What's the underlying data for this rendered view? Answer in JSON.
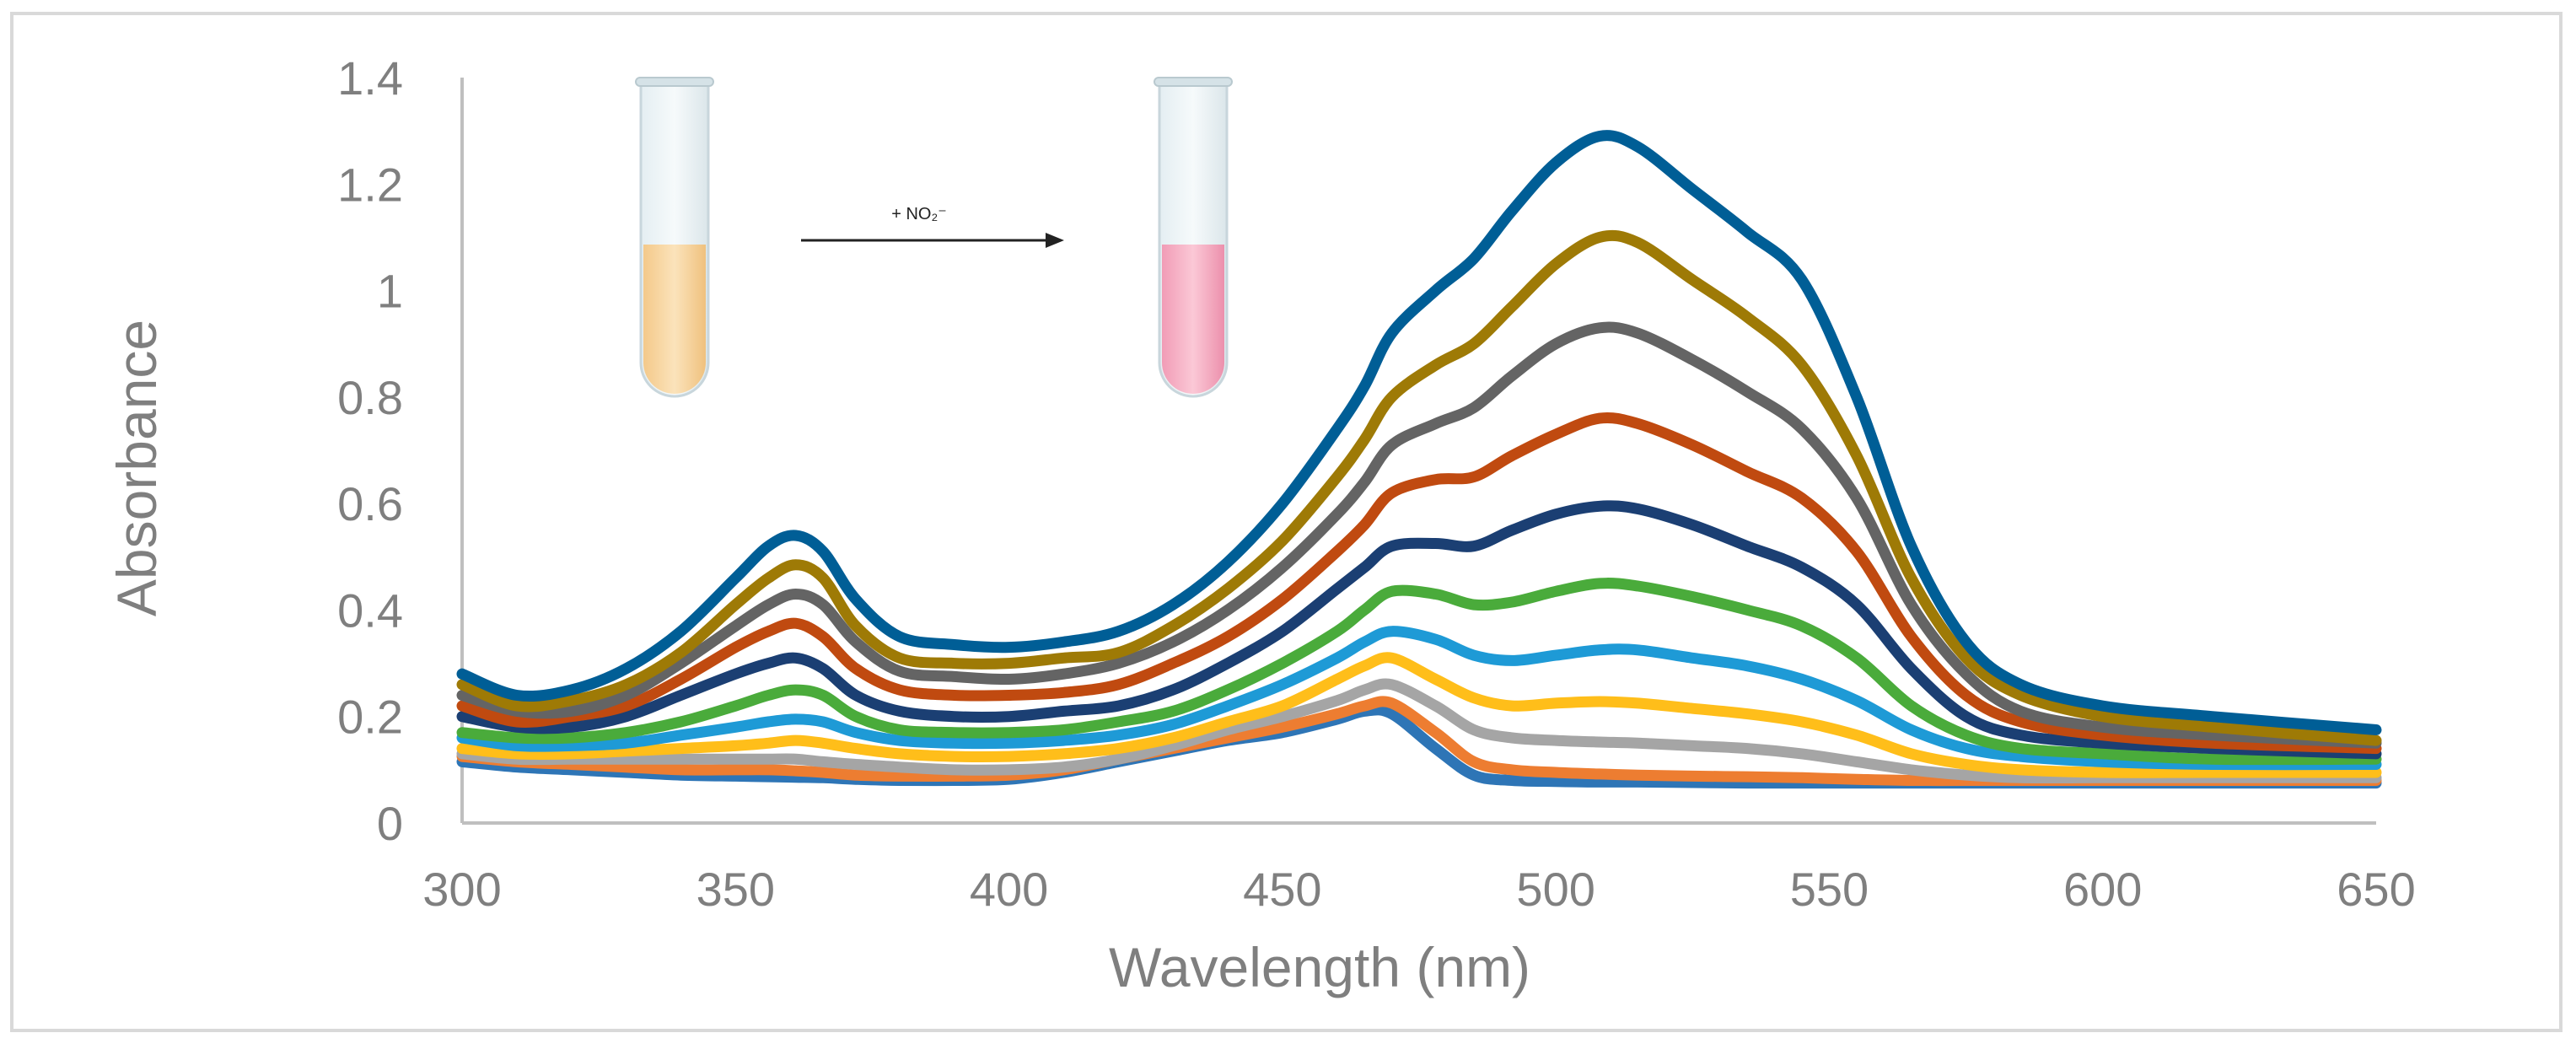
{
  "chart_data": {
    "type": "line",
    "title": "",
    "xlabel": "Wavelength (nm)",
    "ylabel": "Absorbance",
    "xlim": [
      300,
      650
    ],
    "ylim": [
      0,
      1.4
    ],
    "x_ticks": [
      "300",
      "350",
      "400",
      "450",
      "500",
      "550",
      "600",
      "650"
    ],
    "y_ticks": [
      "0",
      "0.2",
      "0.4",
      "0.6",
      "0.8",
      "1",
      "1.2",
      "1.4"
    ],
    "grid": false,
    "legend": "none",
    "x": [
      300,
      310,
      320,
      330,
      340,
      350,
      356,
      361,
      366,
      372,
      380,
      390,
      400,
      410,
      420,
      430,
      440,
      450,
      460,
      465,
      470,
      478,
      485,
      492,
      500,
      508,
      515,
      525,
      535,
      545,
      555,
      565,
      575,
      585,
      600,
      620,
      650
    ],
    "series": [
      {
        "color": "#005E96",
        "values": [
          0.28,
          0.24,
          0.25,
          0.29,
          0.36,
          0.46,
          0.52,
          0.54,
          0.51,
          0.42,
          0.35,
          0.335,
          0.33,
          0.34,
          0.36,
          0.41,
          0.49,
          0.6,
          0.74,
          0.82,
          0.92,
          1.0,
          1.06,
          1.15,
          1.24,
          1.29,
          1.27,
          1.19,
          1.11,
          1.02,
          0.8,
          0.52,
          0.34,
          0.26,
          0.22,
          0.2,
          0.175
        ]
      },
      {
        "color": "#9E7A06",
        "values": [
          0.26,
          0.22,
          0.23,
          0.26,
          0.32,
          0.41,
          0.46,
          0.485,
          0.46,
          0.37,
          0.31,
          0.3,
          0.3,
          0.31,
          0.32,
          0.37,
          0.44,
          0.53,
          0.65,
          0.72,
          0.8,
          0.86,
          0.9,
          0.97,
          1.05,
          1.1,
          1.09,
          1.02,
          0.95,
          0.86,
          0.69,
          0.46,
          0.31,
          0.24,
          0.2,
          0.18,
          0.155
        ]
      },
      {
        "color": "#646464",
        "values": [
          0.24,
          0.21,
          0.21,
          0.24,
          0.3,
          0.37,
          0.41,
          0.43,
          0.41,
          0.34,
          0.285,
          0.275,
          0.27,
          0.28,
          0.3,
          0.34,
          0.4,
          0.48,
          0.58,
          0.64,
          0.71,
          0.75,
          0.78,
          0.84,
          0.9,
          0.93,
          0.92,
          0.87,
          0.81,
          0.74,
          0.61,
          0.41,
          0.28,
          0.21,
          0.18,
          0.165,
          0.15
        ]
      },
      {
        "color": "#C04A10",
        "values": [
          0.22,
          0.19,
          0.2,
          0.22,
          0.27,
          0.33,
          0.36,
          0.375,
          0.35,
          0.29,
          0.25,
          0.24,
          0.24,
          0.245,
          0.26,
          0.3,
          0.35,
          0.42,
          0.51,
          0.56,
          0.62,
          0.645,
          0.65,
          0.69,
          0.73,
          0.76,
          0.75,
          0.71,
          0.66,
          0.61,
          0.51,
          0.35,
          0.24,
          0.19,
          0.165,
          0.15,
          0.14
        ]
      },
      {
        "color": "#1B3F73",
        "values": [
          0.2,
          0.18,
          0.18,
          0.2,
          0.24,
          0.28,
          0.3,
          0.31,
          0.29,
          0.24,
          0.21,
          0.2,
          0.2,
          0.21,
          0.22,
          0.25,
          0.3,
          0.36,
          0.44,
          0.48,
          0.52,
          0.525,
          0.52,
          0.55,
          0.58,
          0.595,
          0.59,
          0.56,
          0.52,
          0.48,
          0.41,
          0.29,
          0.2,
          0.165,
          0.15,
          0.14,
          0.13
        ]
      },
      {
        "color": "#4AAB3B",
        "values": [
          0.17,
          0.16,
          0.16,
          0.17,
          0.19,
          0.22,
          0.24,
          0.25,
          0.24,
          0.2,
          0.175,
          0.17,
          0.17,
          0.175,
          0.19,
          0.21,
          0.25,
          0.3,
          0.36,
          0.4,
          0.435,
          0.43,
          0.41,
          0.415,
          0.435,
          0.45,
          0.445,
          0.425,
          0.4,
          0.37,
          0.31,
          0.22,
          0.165,
          0.14,
          0.13,
          0.12,
          0.12
        ]
      },
      {
        "color": "#1E9AD6",
        "values": [
          0.16,
          0.145,
          0.145,
          0.15,
          0.165,
          0.18,
          0.19,
          0.195,
          0.19,
          0.17,
          0.155,
          0.15,
          0.15,
          0.155,
          0.165,
          0.185,
          0.22,
          0.26,
          0.31,
          0.34,
          0.36,
          0.345,
          0.315,
          0.305,
          0.315,
          0.325,
          0.325,
          0.31,
          0.295,
          0.27,
          0.23,
          0.175,
          0.14,
          0.125,
          0.115,
          0.11,
          0.11
        ]
      },
      {
        "color": "#FFBE1A",
        "values": [
          0.14,
          0.13,
          0.13,
          0.135,
          0.14,
          0.145,
          0.15,
          0.155,
          0.15,
          0.14,
          0.13,
          0.125,
          0.125,
          0.13,
          0.14,
          0.16,
          0.19,
          0.22,
          0.27,
          0.295,
          0.31,
          0.27,
          0.235,
          0.22,
          0.225,
          0.228,
          0.225,
          0.215,
          0.205,
          0.19,
          0.165,
          0.13,
          0.11,
          0.1,
          0.095,
          0.095,
          0.095
        ]
      },
      {
        "color": "#A5A5A5",
        "values": [
          0.13,
          0.12,
          0.12,
          0.12,
          0.12,
          0.12,
          0.12,
          0.12,
          0.115,
          0.11,
          0.105,
          0.1,
          0.1,
          0.105,
          0.12,
          0.145,
          0.175,
          0.2,
          0.23,
          0.25,
          0.26,
          0.22,
          0.175,
          0.16,
          0.155,
          0.152,
          0.15,
          0.145,
          0.14,
          0.13,
          0.115,
          0.1,
          0.09,
          0.085,
          0.085,
          0.085,
          0.085
        ]
      },
      {
        "color": "#ED7D31",
        "values": [
          0.125,
          0.115,
          0.11,
          0.105,
          0.1,
          0.1,
          0.1,
          0.098,
          0.095,
          0.09,
          0.088,
          0.088,
          0.09,
          0.1,
          0.12,
          0.14,
          0.16,
          0.18,
          0.205,
          0.22,
          0.225,
          0.17,
          0.115,
          0.1,
          0.095,
          0.092,
          0.09,
          0.088,
          0.087,
          0.085,
          0.082,
          0.08,
          0.08,
          0.08,
          0.08,
          0.08,
          0.08
        ]
      },
      {
        "color": "#2E75B6",
        "values": [
          0.115,
          0.105,
          0.1,
          0.095,
          0.09,
          0.088,
          0.087,
          0.086,
          0.085,
          0.082,
          0.08,
          0.08,
          0.082,
          0.095,
          0.115,
          0.135,
          0.155,
          0.17,
          0.195,
          0.21,
          0.205,
          0.14,
          0.09,
          0.08,
          0.078,
          0.077,
          0.077,
          0.076,
          0.075,
          0.075,
          0.075,
          0.075,
          0.075,
          0.075,
          0.075,
          0.075,
          0.075
        ]
      }
    ]
  },
  "annotations": {
    "reagent": "+ NO₂⁻",
    "tube_before_color": "#F8D9A6",
    "tube_after_color": "#F6B2C6"
  }
}
